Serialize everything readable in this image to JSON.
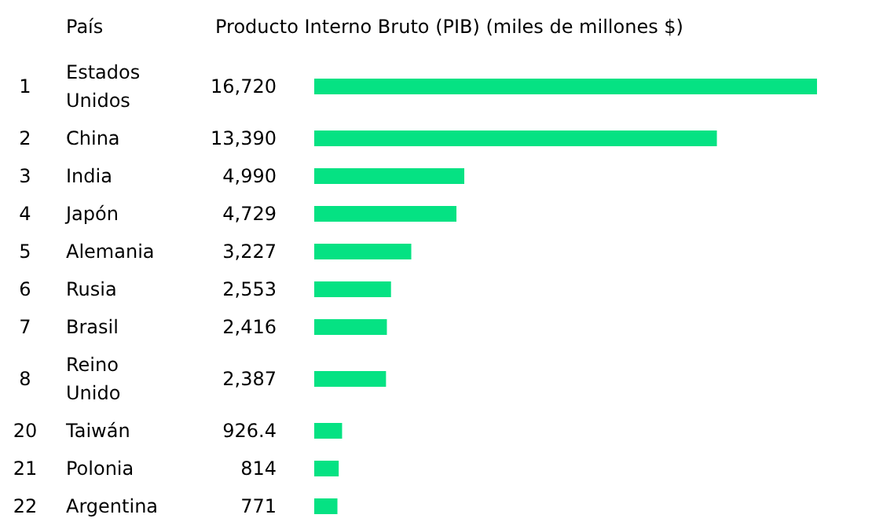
{
  "chart_data": {
    "type": "bar",
    "orientation": "horizontal",
    "relative": false,
    "title": "Producto Interno Bruto (PIB) (miles de millones $)",
    "ylabel": "País",
    "categories": [
      "Estados Unidos",
      "China",
      "India",
      "Japón",
      "Alemania",
      "Rusia",
      "Brasil",
      "Reino Unido",
      "Taiwán",
      "Polonia",
      "Argentina"
    ],
    "values": [
      16720,
      13390,
      4990,
      4729,
      3227,
      2553,
      2416,
      2387,
      926.4,
      814,
      771
    ],
    "value_labels": [
      "16,720",
      "13,390",
      "4,990",
      "4,729",
      "3,227",
      "2,553",
      "2,416",
      "2,387",
      "926.4",
      "814",
      "771"
    ],
    "annotations": [
      "1",
      "2",
      "3",
      "4",
      "5",
      "6",
      "7",
      "8",
      "20",
      "21",
      "22"
    ],
    "color": "#05e283"
  }
}
